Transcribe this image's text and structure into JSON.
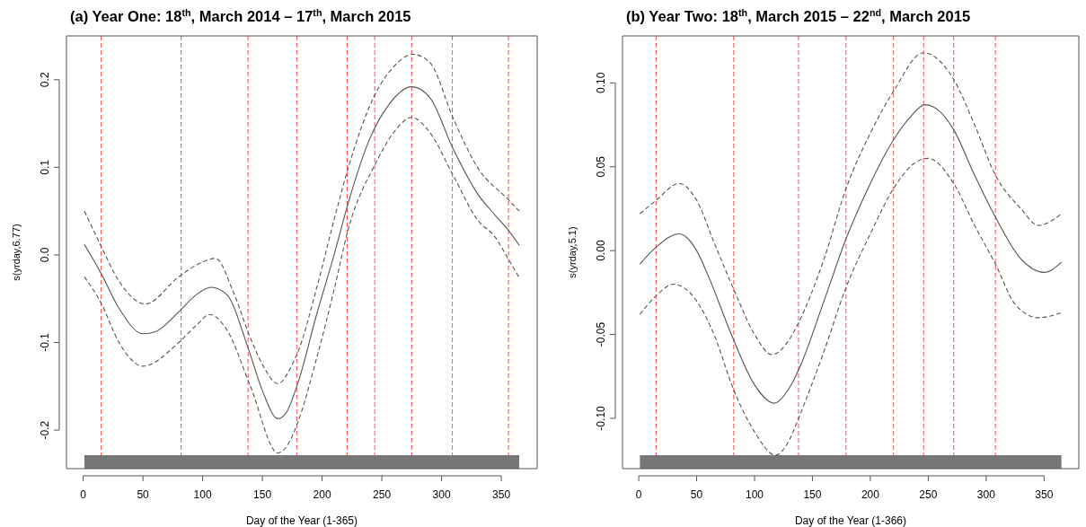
{
  "chart_data": [
    {
      "type": "line",
      "title": "(a)  Year One: 18$^{th}$, March 2014 – 17$^{th}$, March 2015",
      "xlabel": "Day of the Year (1-365)",
      "ylabel": "s(yrday,6.77)",
      "xlim": [
        -14,
        380
      ],
      "xticks": [
        0,
        50,
        100,
        150,
        200,
        250,
        300,
        350
      ],
      "ylim": [
        -0.244,
        0.25
      ],
      "yticks": [
        -0.2,
        -0.1,
        {
          "value": 0,
          "label": "0.0"
        },
        0.1,
        0.2
      ],
      "grid": false,
      "series": [
        {
          "color": "#555555",
          "line_style": "solid",
          "x": [
            1,
            15,
            30,
            50,
            60,
            80,
            95,
            107,
            120,
            138,
            150,
            163,
            170,
            180,
            195,
            210,
            222,
            240,
            255,
            275,
            290,
            310,
            330,
            345,
            356,
            365
          ],
          "values": [
            0.012,
            -0.021,
            -0.061,
            -0.09,
            -0.088,
            -0.065,
            -0.045,
            -0.037,
            -0.045,
            -0.106,
            -0.155,
            -0.187,
            -0.18,
            -0.145,
            -0.07,
            0.0,
            0.06,
            0.133,
            0.17,
            0.192,
            0.18,
            0.12,
            0.07,
            0.045,
            0.028,
            0.011
          ]
        },
        {
          "color": "#555555",
          "line_style": "dashed",
          "x": [
            1,
            15,
            30,
            52,
            80,
            100,
            111,
            125,
            140,
            150,
            163,
            175,
            180,
            195,
            210,
            222,
            245,
            260,
            276,
            290,
            310,
            330,
            356,
            365
          ],
          "values": [
            0.05,
            0.01,
            -0.03,
            -0.056,
            -0.025,
            -0.008,
            -0.004,
            -0.04,
            -0.095,
            -0.125,
            -0.147,
            -0.125,
            -0.11,
            -0.04,
            0.04,
            0.1,
            0.185,
            0.215,
            0.229,
            0.22,
            0.155,
            0.1,
            0.063,
            0.05
          ]
        },
        {
          "color": "#555555",
          "line_style": "dashed",
          "x": [
            1,
            15,
            30,
            50,
            80,
            95,
            106,
            120,
            140,
            163,
            172,
            180,
            195,
            210,
            222,
            245,
            260,
            275,
            290,
            310,
            330,
            345,
            356,
            365
          ],
          "values": [
            -0.025,
            -0.055,
            -0.1,
            -0.127,
            -0.1,
            -0.08,
            -0.068,
            -0.085,
            -0.15,
            -0.226,
            -0.215,
            -0.19,
            -0.12,
            -0.04,
            0.03,
            0.105,
            0.14,
            0.157,
            0.14,
            0.09,
            0.04,
            0.02,
            -0.005,
            -0.026
          ]
        }
      ],
      "ref_lines": [
        {
          "axis": "x",
          "value": 15,
          "color": "#ff4d4d",
          "line_style": "dashed"
        },
        {
          "axis": "x",
          "value": 82,
          "color": "#ff4d4d",
          "line_style": "dashed"
        },
        {
          "axis": "x",
          "value": 138,
          "color": "#ff4d4d",
          "line_style": "dashed"
        },
        {
          "axis": "x",
          "value": 179,
          "color": "#ff4d4d",
          "line_style": "dashed"
        },
        {
          "axis": "x",
          "value": 221,
          "color": "#ff4d4d",
          "line_style": "dashed"
        },
        {
          "axis": "x",
          "value": 244,
          "color": "#ff4d4d",
          "line_style": "dashed"
        },
        {
          "axis": "x",
          "value": 275,
          "color": "#ff4d4d",
          "line_style": "dashed"
        },
        {
          "axis": "x",
          "value": 309,
          "color": "#ff4d4d",
          "line_style": "dashed"
        },
        {
          "axis": "x",
          "value": 356,
          "color": "#ff4d4d",
          "line_style": "dashed"
        }
      ]
    },
    {
      "type": "line",
      "title": "(b)   Year Two: 18$^{th}$, March 2015 – 22$^{nd}$, March 2015",
      "xlabel": "Day of the Year (1-366)",
      "ylabel": "s(yrday,5.1)",
      "xlim": [
        -14,
        380
      ],
      "xticks": [
        0,
        50,
        100,
        150,
        200,
        250,
        300,
        350
      ],
      "ylim": [
        -0.13,
        0.128
      ],
      "yticks": [
        {
          "value": -0.1,
          "label": "-0.10"
        },
        {
          "value": -0.05,
          "label": "-0.05"
        },
        {
          "value": 0,
          "label": "0.00"
        },
        {
          "value": 0.05,
          "label": "0.05"
        },
        {
          "value": 0.1,
          "label": "0.10"
        }
      ],
      "grid": false,
      "series": [
        {
          "color": "#555555",
          "line_style": "solid",
          "x": [
            1,
            15,
            35,
            50,
            60,
            80,
            100,
            117,
            130,
            140,
            160,
            179,
            200,
            220,
            235,
            247,
            260,
            272,
            290,
            308,
            330,
            350,
            365
          ],
          "values": [
            -0.008,
            0.002,
            0.01,
            0.0,
            -0.015,
            -0.05,
            -0.08,
            -0.091,
            -0.082,
            -0.068,
            -0.03,
            0.007,
            0.04,
            0.066,
            0.08,
            0.087,
            0.083,
            0.072,
            0.045,
            0.02,
            -0.005,
            -0.013,
            -0.007
          ]
        },
        {
          "color": "#555555",
          "line_style": "dashed",
          "x": [
            1,
            15,
            35,
            50,
            65,
            82,
            100,
            115,
            130,
            138,
            160,
            179,
            200,
            220,
            246,
            260,
            272,
            290,
            308,
            330,
            345,
            365
          ],
          "values": [
            0.022,
            0.03,
            0.04,
            0.03,
            0.005,
            -0.023,
            -0.05,
            -0.062,
            -0.053,
            -0.043,
            -0.005,
            0.037,
            0.07,
            0.095,
            0.118,
            0.113,
            0.102,
            0.075,
            0.045,
            0.025,
            0.015,
            0.022
          ]
        },
        {
          "color": "#555555",
          "line_style": "dashed",
          "x": [
            1,
            15,
            30,
            50,
            65,
            82,
            100,
            118,
            130,
            138,
            160,
            179,
            200,
            220,
            240,
            250,
            272,
            290,
            308,
            325,
            345,
            365
          ],
          "values": [
            -0.038,
            -0.027,
            -0.02,
            -0.03,
            -0.05,
            -0.083,
            -0.108,
            -0.122,
            -0.113,
            -0.1,
            -0.06,
            -0.022,
            0.01,
            0.037,
            0.053,
            0.055,
            0.04,
            0.015,
            -0.008,
            -0.032,
            -0.04,
            -0.037
          ]
        }
      ],
      "ref_lines": [
        {
          "axis": "x",
          "value": 15,
          "color": "#ff4d4d",
          "line_style": "dashed"
        },
        {
          "axis": "x",
          "value": 82,
          "color": "#ff4d4d",
          "line_style": "dashed"
        },
        {
          "axis": "x",
          "value": 138,
          "color": "#ff4d4d",
          "line_style": "dashed"
        },
        {
          "axis": "x",
          "value": 179,
          "color": "#ff4d4d",
          "line_style": "dashed"
        },
        {
          "axis": "x",
          "value": 220,
          "color": "#ff4d4d",
          "line_style": "dashed"
        },
        {
          "axis": "x",
          "value": 246,
          "color": "#ff4d4d",
          "line_style": "dashed"
        },
        {
          "axis": "x",
          "value": 272,
          "color": "#ff4d4d",
          "line_style": "dashed"
        },
        {
          "axis": "x",
          "value": 308,
          "color": "#ff4d4d",
          "line_style": "dashed"
        }
      ]
    }
  ]
}
